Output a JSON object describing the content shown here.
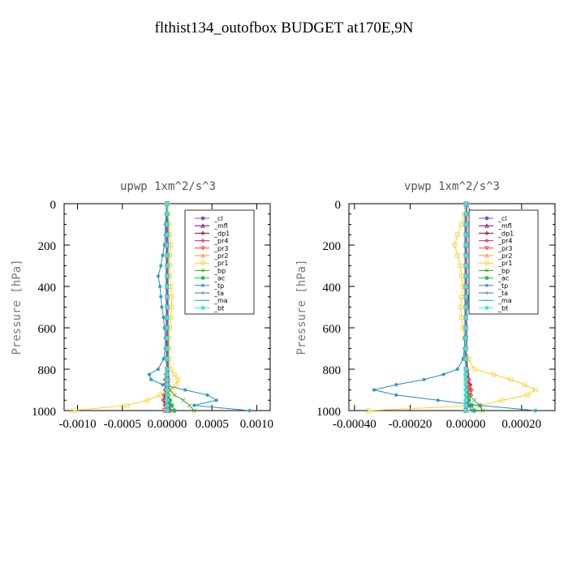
{
  "page_title": "flthist134_outofbox  BUDGET at170E,9N",
  "chart_data": [
    {
      "type": "line",
      "title": "upwp   1xm^2/s^3",
      "ylabel": "Pressure [hPa]",
      "xlabel": "",
      "xlim": [
        -0.00115,
        0.00115
      ],
      "ylim": [
        1000,
        0
      ],
      "xticks": [
        -0.001,
        -0.0005,
        0.0,
        0.0005,
        0.001
      ],
      "xtick_labels": [
        "-0.0010",
        "-0.0005",
        "0.00000",
        "0.0005",
        "0.0010"
      ],
      "yticks": [
        0,
        200,
        400,
        600,
        800,
        1000
      ],
      "ytick_labels": [
        "0",
        "200",
        "400",
        "600",
        "800",
        "1000"
      ],
      "legend_position": "top-right",
      "y": [
        0,
        50,
        100,
        150,
        200,
        250,
        300,
        350,
        400,
        450,
        500,
        550,
        600,
        650,
        700,
        750,
        800,
        825,
        850,
        875,
        900,
        925,
        950,
        975,
        1000
      ],
      "series": [
        {
          "name": "_cl",
          "color": "#8050c0",
          "marker": "circle",
          "values": [
            0,
            0,
            0,
            0,
            0,
            0,
            0,
            0,
            0,
            0,
            0,
            0,
            0,
            0,
            0,
            0,
            0,
            0,
            0,
            0,
            0,
            0,
            0,
            0,
            0
          ]
        },
        {
          "name": "_mfl",
          "color": "#800080",
          "marker": "triangle",
          "values": [
            0,
            0,
            0,
            0,
            0,
            0,
            0,
            0,
            0,
            0,
            0,
            0,
            0,
            0,
            0,
            0,
            4e-06,
            4e-06,
            5e-06,
            6e-06,
            5e-06,
            3e-06,
            2e-06,
            1e-06,
            0
          ]
        },
        {
          "name": "_dp1",
          "color": "#a00030",
          "marker": "diamond",
          "values": [
            0,
            0,
            0,
            0,
            0,
            0,
            0,
            0,
            0,
            0,
            0,
            0,
            0,
            0,
            0,
            0,
            0,
            -1e-05,
            -2e-05,
            -2e-05,
            -2e-05,
            -3e-05,
            -4e-05,
            -2e-05,
            0
          ]
        },
        {
          "name": "_pr4",
          "color": "#e02060",
          "marker": "diamond",
          "values": [
            0,
            0,
            0,
            0,
            0,
            0,
            0,
            0,
            0,
            0,
            0,
            0,
            0,
            0,
            0,
            0,
            0,
            5e-06,
            1e-05,
            1e-05,
            5e-06,
            1e-05,
            2e-05,
            3e-05,
            4e-05
          ]
        },
        {
          "name": "_pr3",
          "color": "#ff3040",
          "marker": "triangle-down",
          "values": [
            0,
            0,
            0,
            0,
            0,
            0,
            0,
            0,
            0,
            0,
            0,
            0,
            0,
            0,
            0,
            0,
            0,
            0,
            5e-06,
            5e-06,
            0,
            -5e-06,
            -1e-05,
            -2e-05,
            -3e-05
          ]
        },
        {
          "name": "_pr2",
          "color": "#ff9020",
          "marker": "triangle",
          "values": [
            0,
            0,
            0,
            0,
            0,
            0,
            0,
            0,
            0,
            0,
            0,
            0,
            0,
            0,
            0,
            0,
            0,
            0,
            0,
            5e-06,
            1e-05,
            5e-06,
            0,
            -1e-05,
            -2e-05
          ]
        },
        {
          "name": "_pr1",
          "color": "#ffd020",
          "marker": "square",
          "values": [
            1e-05,
            1e-05,
            2e-05,
            3e-05,
            4e-05,
            3e-05,
            3e-05,
            3e-05,
            4e-05,
            5e-05,
            5e-05,
            4e-05,
            3e-05,
            2e-05,
            2e-05,
            2e-05,
            4e-05,
            8e-05,
            0.00012,
            0.0001,
            5e-05,
            -8e-05,
            -0.00022,
            -0.00045,
            -0.00105
          ]
        },
        {
          "name": "_bp",
          "color": "#40a020",
          "marker": "cross",
          "values": [
            0,
            0,
            0,
            0,
            0,
            0,
            0,
            0,
            0,
            0,
            0,
            0,
            0,
            0,
            0,
            0,
            0,
            0,
            0,
            0,
            3e-05,
            8e-05,
            0.00018,
            0.00025,
            0.0003
          ]
        },
        {
          "name": "_ac",
          "color": "#20c040",
          "marker": "circle",
          "values": [
            0,
            0,
            0,
            0,
            0,
            0,
            0,
            0,
            0,
            0,
            0,
            0,
            0,
            0,
            0,
            0,
            0,
            0,
            0,
            0,
            0,
            1e-05,
            3e-05,
            5e-05,
            8e-05
          ]
        },
        {
          "name": "_tp",
          "color": "#2090c0",
          "marker": "star",
          "values": [
            -1e-05,
            -1e-05,
            -2e-05,
            -2e-05,
            -3e-05,
            -5e-05,
            -7e-05,
            -0.0001,
            -8e-05,
            -7e-05,
            -6e-05,
            -4e-05,
            -3e-05,
            -2e-05,
            -2e-05,
            -4e-05,
            -0.0001,
            -0.0002,
            -0.00018,
            -5e-05,
            0.0002,
            0.00045,
            0.00055,
            0.0003,
            0.00092
          ]
        },
        {
          "name": "_ta",
          "color": "#4060e0",
          "marker": "plus",
          "values": [
            0,
            0,
            0,
            0,
            0,
            0,
            0,
            0,
            0,
            0,
            0,
            0,
            0,
            0,
            0,
            0,
            0,
            0,
            0,
            0,
            0,
            0,
            1e-05,
            2e-05,
            3e-05
          ]
        },
        {
          "name": "_ma",
          "color": "#20a0a0",
          "marker": "dash",
          "values": [
            0,
            0,
            0,
            0,
            0,
            0,
            0,
            0,
            0,
            0,
            0,
            0,
            0,
            0,
            0,
            0,
            0,
            0,
            0,
            0,
            0,
            0,
            0,
            0,
            0
          ]
        },
        {
          "name": "_bt",
          "color": "#40e0e0",
          "marker": "circle",
          "values": [
            0,
            0,
            0,
            0,
            0,
            0,
            0,
            0,
            0,
            0,
            0,
            0,
            0,
            0,
            0,
            0,
            0,
            0,
            0,
            0,
            0,
            0,
            0,
            0,
            0
          ]
        }
      ]
    },
    {
      "type": "line",
      "title": "vpwp   1xm^2/s^3",
      "ylabel": "Pressure [hPa]",
      "xlabel": "",
      "xlim": [
        -0.00042,
        0.00032
      ],
      "ylim": [
        1000,
        0
      ],
      "xticks": [
        -0.0004,
        -0.0002,
        0.0,
        0.0002
      ],
      "xtick_labels": [
        "-0.00040",
        "-0.00020",
        "0.00000",
        "0.00020"
      ],
      "yticks": [
        0,
        200,
        400,
        600,
        800,
        1000
      ],
      "ytick_labels": [
        "0",
        "200",
        "400",
        "600",
        "800",
        "1000"
      ],
      "legend_position": "top-right",
      "y": [
        0,
        50,
        100,
        150,
        200,
        250,
        300,
        350,
        400,
        450,
        500,
        550,
        600,
        650,
        700,
        750,
        800,
        825,
        850,
        875,
        900,
        925,
        950,
        975,
        1000
      ],
      "series": [
        {
          "name": "_cl",
          "color": "#8050c0",
          "marker": "circle",
          "values": [
            0,
            0,
            0,
            0,
            0,
            0,
            0,
            0,
            0,
            0,
            0,
            0,
            0,
            0,
            0,
            0,
            0,
            0,
            0,
            0,
            0,
            0,
            0,
            0,
            0
          ]
        },
        {
          "name": "_mfl",
          "color": "#800080",
          "marker": "triangle",
          "values": [
            0,
            0,
            0,
            0,
            0,
            0,
            0,
            0,
            0,
            0,
            0,
            0,
            0,
            0,
            0,
            0,
            3e-06,
            4e-06,
            6e-06,
            8e-06,
            6e-06,
            4e-06,
            2e-06,
            1e-06,
            0
          ]
        },
        {
          "name": "_dp1",
          "color": "#a00030",
          "marker": "diamond",
          "values": [
            0,
            0,
            0,
            0,
            0,
            0,
            0,
            0,
            0,
            0,
            0,
            0,
            0,
            0,
            0,
            0,
            2e-06,
            5e-06,
            1e-05,
            1.2e-05,
            1e-05,
            8e-06,
            5e-06,
            2e-06,
            0
          ]
        },
        {
          "name": "_pr4",
          "color": "#e02060",
          "marker": "diamond",
          "values": [
            0,
            0,
            0,
            0,
            0,
            0,
            0,
            0,
            0,
            0,
            0,
            0,
            0,
            0,
            0,
            0,
            0,
            5e-06,
            1e-05,
            1.5e-05,
            2e-05,
            1.8e-05,
            1e-05,
            5e-06,
            0
          ]
        },
        {
          "name": "_pr3",
          "color": "#ff3040",
          "marker": "triangle-down",
          "values": [
            0,
            0,
            0,
            0,
            0,
            0,
            0,
            0,
            0,
            0,
            0,
            0,
            0,
            0,
            0,
            0,
            0,
            3e-06,
            6e-06,
            8e-06,
            1e-05,
            8e-06,
            5e-06,
            2e-06,
            0
          ]
        },
        {
          "name": "_pr2",
          "color": "#ff9020",
          "marker": "triangle",
          "values": [
            0,
            0,
            0,
            0,
            0,
            0,
            0,
            0,
            0,
            0,
            0,
            0,
            0,
            0,
            0,
            0,
            0,
            0,
            3e-06,
            6e-06,
            8e-06,
            5e-06,
            2e-06,
            0,
            0
          ]
        },
        {
          "name": "_pr1",
          "color": "#ffd020",
          "marker": "square",
          "values": [
            0,
            -5e-06,
            -1.5e-05,
            -3e-05,
            -4e-05,
            -3e-05,
            -2e-05,
            -1.5e-05,
            -1e-05,
            -1.5e-05,
            -2e-05,
            -1.5e-05,
            -1e-05,
            -5e-06,
            0,
            1e-05,
            3e-05,
            0.0001,
            0.00016,
            0.00021,
            0.00025,
            0.00022,
            0.00013,
            5e-05,
            -0.00035
          ]
        },
        {
          "name": "_bp",
          "color": "#40a020",
          "marker": "cross",
          "values": [
            0,
            0,
            0,
            0,
            0,
            0,
            0,
            0,
            0,
            0,
            0,
            0,
            0,
            0,
            0,
            0,
            0,
            0,
            0,
            0,
            5e-06,
            1e-05,
            3e-05,
            5e-05,
            6e-05
          ]
        },
        {
          "name": "_ac",
          "color": "#20c040",
          "marker": "circle",
          "values": [
            0,
            0,
            0,
            0,
            0,
            0,
            0,
            0,
            0,
            0,
            0,
            0,
            0,
            0,
            0,
            0,
            0,
            0,
            0,
            0,
            0,
            5e-06,
            1e-05,
            2e-05,
            3e-05
          ]
        },
        {
          "name": "_tp",
          "color": "#2090c0",
          "marker": "star",
          "values": [
            5e-06,
            2e-05,
            4e-05,
            5e-05,
            4e-05,
            3e-05,
            3e-05,
            2.5e-05,
            1.5e-05,
            1e-05,
            5e-06,
            0,
            0,
            -5e-06,
            -5e-06,
            -1e-05,
            -3e-05,
            -8e-05,
            -0.00015,
            -0.00025,
            -0.00033,
            -0.00025,
            -0.0001,
            5e-05,
            0.00025
          ]
        },
        {
          "name": "_ta",
          "color": "#4060e0",
          "marker": "plus",
          "values": [
            0,
            0,
            0,
            0,
            0,
            0,
            0,
            0,
            0,
            0,
            0,
            0,
            0,
            0,
            0,
            0,
            0,
            0,
            0,
            0,
            0,
            0,
            5e-06,
            1e-05,
            2e-05
          ]
        },
        {
          "name": "_ma",
          "color": "#20a0a0",
          "marker": "dash",
          "values": [
            0,
            0,
            0,
            0,
            0,
            0,
            0,
            0,
            0,
            0,
            0,
            0,
            0,
            0,
            0,
            0,
            0,
            0,
            0,
            0,
            0,
            0,
            0,
            0,
            0
          ]
        },
        {
          "name": "_bt",
          "color": "#40e0e0",
          "marker": "circle",
          "values": [
            0,
            0,
            0,
            0,
            0,
            0,
            0,
            0,
            0,
            0,
            0,
            0,
            0,
            0,
            0,
            0,
            0,
            0,
            0,
            0,
            0,
            0,
            0,
            0,
            0
          ]
        }
      ]
    }
  ]
}
